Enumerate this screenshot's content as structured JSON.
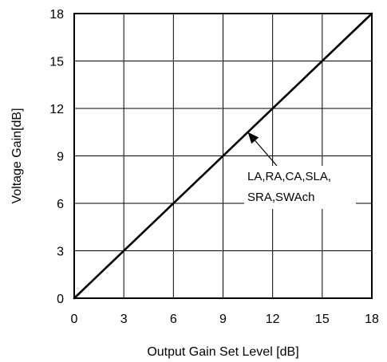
{
  "chart_data": {
    "type": "line",
    "xlabel": "Output Gain Set Level [dB]",
    "ylabel": "Voltage Gain[dB]",
    "xlim": [
      0,
      18
    ],
    "ylim": [
      0,
      18
    ],
    "x_ticks": [
      0,
      3,
      6,
      9,
      12,
      15,
      18
    ],
    "y_ticks": [
      0,
      3,
      6,
      9,
      12,
      15,
      18
    ],
    "x_tick_labels": [
      "0",
      "3",
      "6",
      "9",
      "12",
      "15",
      "18"
    ],
    "y_tick_labels": [
      "0",
      "3",
      "6",
      "9",
      "12",
      "15",
      "18"
    ],
    "grid": true,
    "series": [
      {
        "x": [
          0,
          18
        ],
        "y": [
          0,
          18
        ]
      }
    ],
    "annotation": {
      "lines": [
        "LA,RA,CA,SLA,",
        "SRA,SWAch"
      ],
      "arrow_target": [
        10.5,
        10.5
      ]
    },
    "colors": {
      "line": "#000000",
      "grid": "#000000",
      "background": "#ffffff"
    }
  }
}
